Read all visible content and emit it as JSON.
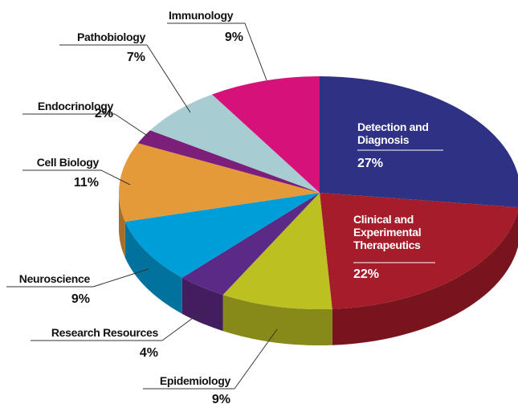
{
  "chart_data": {
    "type": "pie",
    "categories": [
      "Detection and Diagnosis",
      "Clinical and Experimental Therapeutics",
      "Epidemiology",
      "Research Resources",
      "Neuroscience",
      "Cell Biology",
      "Endocrinology",
      "Pathobiology",
      "Immunology"
    ],
    "values": [
      27,
      22,
      9,
      4,
      9,
      11,
      2,
      7,
      9
    ],
    "value_labels": [
      "27%",
      "22%",
      "9%",
      "4%",
      "9%",
      "11%",
      "2%",
      "7%",
      "9%"
    ],
    "colors": [
      "#2e3184",
      "#a51c2a",
      "#bcc021",
      "#5b2a86",
      "#009ed8",
      "#e59a3a",
      "#7b1f7a",
      "#a7cdd2",
      "#d6127a"
    ]
  }
}
